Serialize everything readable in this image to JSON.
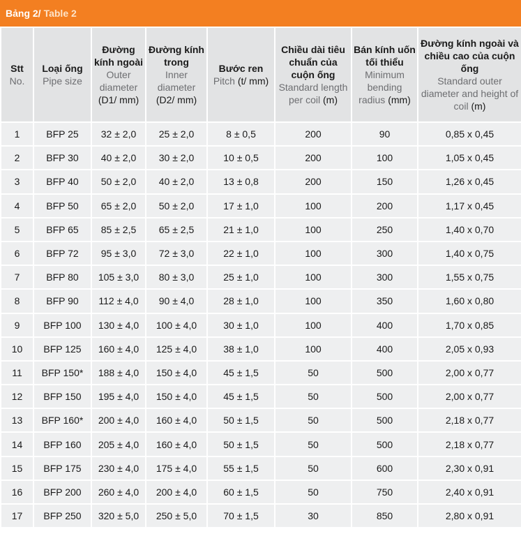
{
  "header": {
    "title_vi": "Bảng 2/",
    "title_en": "Table 2"
  },
  "table": {
    "columns": [
      {
        "vi": "Stt",
        "en": "No."
      },
      {
        "vi": "Loại ống",
        "en": "Pipe size"
      },
      {
        "vi": "Đường kính ngoài",
        "en": "Outer diameter",
        "unit": "(D1/ mm)"
      },
      {
        "vi": "Đường kính trong",
        "en": "Inner diameter",
        "unit": "(D2/ mm)"
      },
      {
        "vi": "Bước ren",
        "en": "Pitch",
        "unit": "(t/ mm)"
      },
      {
        "vi": "Chiều dài tiêu chuẩn của cuộn ống",
        "en": "Standard length per coil",
        "unit": "(m)"
      },
      {
        "vi": "Bán kính uốn tối thiểu",
        "en": "Minimum bending radius",
        "unit": "(mm)"
      },
      {
        "vi": "Đường kính ngoài và chiều cao của cuộn ống",
        "en": "Standard outer diameter and height of coil",
        "unit": "(m)"
      }
    ],
    "rows": [
      [
        "1",
        "BFP 25",
        "32 ± 2,0",
        "25 ± 2,0",
        "8 ± 0,5",
        "200",
        "90",
        "0,85 x 0,45"
      ],
      [
        "2",
        "BFP 30",
        "40 ± 2,0",
        "30 ± 2,0",
        "10 ± 0,5",
        "200",
        "100",
        "1,05 x 0,45"
      ],
      [
        "3",
        "BFP 40",
        "50 ± 2,0",
        "40 ± 2,0",
        "13 ± 0,8",
        "200",
        "150",
        "1,26 x 0,45"
      ],
      [
        "4",
        "BFP 50",
        "65 ± 2,0",
        "50 ± 2,0",
        "17 ± 1,0",
        "100",
        "200",
        "1,17 x 0,45"
      ],
      [
        "5",
        "BFP 65",
        "85 ± 2,5",
        "65 ± 2,5",
        "21 ± 1,0",
        "100",
        "250",
        "1,40 x 0,70"
      ],
      [
        "6",
        "BFP 72",
        "95 ± 3,0",
        "72 ± 3,0",
        "22 ± 1,0",
        "100",
        "300",
        "1,40 x 0,75"
      ],
      [
        "7",
        "BFP 80",
        "105 ± 3,0",
        "80 ± 3,0",
        "25 ± 1,0",
        "100",
        "300",
        "1,55 x 0,75"
      ],
      [
        "8",
        "BFP 90",
        "112 ± 4,0",
        "90 ± 4,0",
        "28 ± 1,0",
        "100",
        "350",
        "1,60 x 0,80"
      ],
      [
        "9",
        "BFP 100",
        "130 ± 4,0",
        "100 ± 4,0",
        "30 ± 1,0",
        "100",
        "400",
        "1,70 x 0,85"
      ],
      [
        "10",
        "BFP 125",
        "160 ± 4,0",
        "125 ± 4,0",
        "38 ± 1,0",
        "100",
        "400",
        "2,05 x 0,93"
      ],
      [
        "11",
        "BFP 150*",
        "188 ± 4,0",
        "150 ± 4,0",
        "45 ± 1,5",
        "50",
        "500",
        "2,00 x 0,77"
      ],
      [
        "12",
        "BFP 150",
        "195 ± 4,0",
        "150 ± 4,0",
        "45 ± 1,5",
        "50",
        "500",
        "2,00 x 0,77"
      ],
      [
        "13",
        "BFP 160*",
        "200 ± 4,0",
        "160 ± 4,0",
        "50 ± 1,5",
        "50",
        "500",
        "2,18 x 0,77"
      ],
      [
        "14",
        "BFP 160",
        "205 ± 4,0",
        "160 ± 4,0",
        "50 ± 1,5",
        "50",
        "500",
        "2,18 x 0,77"
      ],
      [
        "15",
        "BFP 175",
        "230 ± 4,0",
        "175 ± 4,0",
        "55 ± 1,5",
        "50",
        "600",
        "2,30 x 0,91"
      ],
      [
        "16",
        "BFP 200",
        "260 ± 4,0",
        "200 ± 4,0",
        "60 ± 1,5",
        "50",
        "750",
        "2,40 x 0,91"
      ],
      [
        "17",
        "BFP 250",
        "320 ± 5,0",
        "250 ± 5,0",
        "70 ± 1,5",
        "30",
        "850",
        "2,80 x 0,91"
      ]
    ]
  }
}
